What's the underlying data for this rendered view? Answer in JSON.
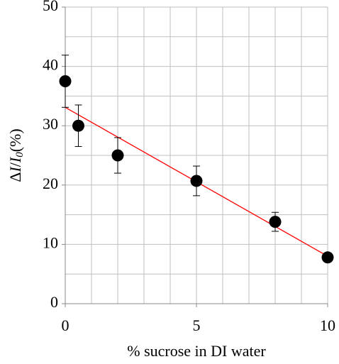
{
  "chart_data": {
    "type": "scatter",
    "xlabel": "% sucrose in DI water",
    "ylabel_parts": [
      "Δ",
      "I",
      "/",
      "I",
      "0",
      "(%)"
    ],
    "xlim": [
      0,
      10
    ],
    "ylim": [
      0,
      50
    ],
    "xticks": [
      0,
      5,
      10
    ],
    "yticks": [
      0,
      10,
      20,
      30,
      40,
      50
    ],
    "x_gridlines": [
      0,
      1,
      2,
      3,
      4,
      5,
      6,
      7,
      8,
      9,
      10
    ],
    "y_gridlines": [
      0,
      5,
      10,
      15,
      20,
      25,
      30,
      35,
      40,
      45,
      50
    ],
    "series": [
      {
        "kind": "points",
        "color": "#000000",
        "x": [
          0,
          0.5,
          2,
          5,
          8,
          10
        ],
        "values": [
          37.5,
          30,
          25,
          20.7,
          13.8,
          7.8
        ],
        "errors": [
          4.4,
          3.5,
          3,
          2.5,
          1.6,
          0.5
        ]
      },
      {
        "kind": "trendline",
        "color": "#ff0000",
        "x": [
          0,
          10
        ],
        "values": [
          33.1,
          8
        ]
      }
    ]
  }
}
